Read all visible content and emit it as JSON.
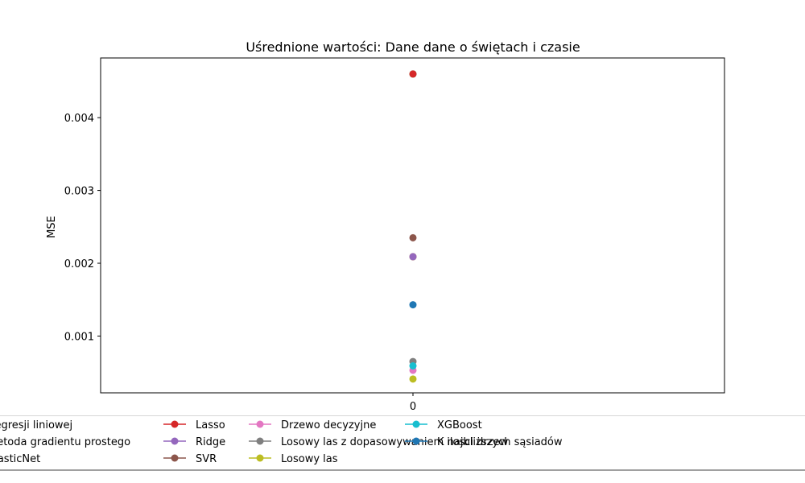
{
  "chart_data": {
    "type": "scatter",
    "title": "Uśrednione wartości: Dane dane o świętach i czasie",
    "xlabel": "",
    "ylabel": "MSE",
    "x_ticks": [
      "0"
    ],
    "y_ticks": [
      "0.001",
      "0.002",
      "0.003",
      "0.004"
    ],
    "ylim": [
      0.00022,
      0.00482
    ],
    "grid": false,
    "legend_position": "bottom",
    "series": [
      {
        "name": "Regresji liniowej",
        "color": "#1f77b4",
        "x": 0,
        "y": 0.00209
      },
      {
        "name": "Metoda gradientu prostego",
        "color": "#ff7f0e",
        "x": 0,
        "y": 0.00209
      },
      {
        "name": "ElasticNet",
        "color": "#2ca02c",
        "x": 0,
        "y": 0.0046
      },
      {
        "name": "Lasso",
        "color": "#d62728",
        "x": 0,
        "y": 0.0046
      },
      {
        "name": "Ridge",
        "color": "#9467bd",
        "x": 0,
        "y": 0.00209
      },
      {
        "name": "SVR",
        "color": "#8c564b",
        "x": 0,
        "y": 0.00235
      },
      {
        "name": "Drzewo decyzyjne",
        "color": "#e377c2",
        "x": 0,
        "y": 0.00053
      },
      {
        "name": "Losowy las z dopasowywaniem ilosci drzew",
        "color": "#7f7f7f",
        "x": 0,
        "y": 0.00065
      },
      {
        "name": "Losowy las",
        "color": "#bcbd22",
        "x": 0,
        "y": 0.00041
      },
      {
        "name": "XGBoost",
        "color": "#17becf",
        "x": 0,
        "y": 0.00059
      },
      {
        "name": "K najbliższych sąsiadów",
        "color": "#1f77b4",
        "x": 0,
        "y": 0.00143
      }
    ]
  }
}
